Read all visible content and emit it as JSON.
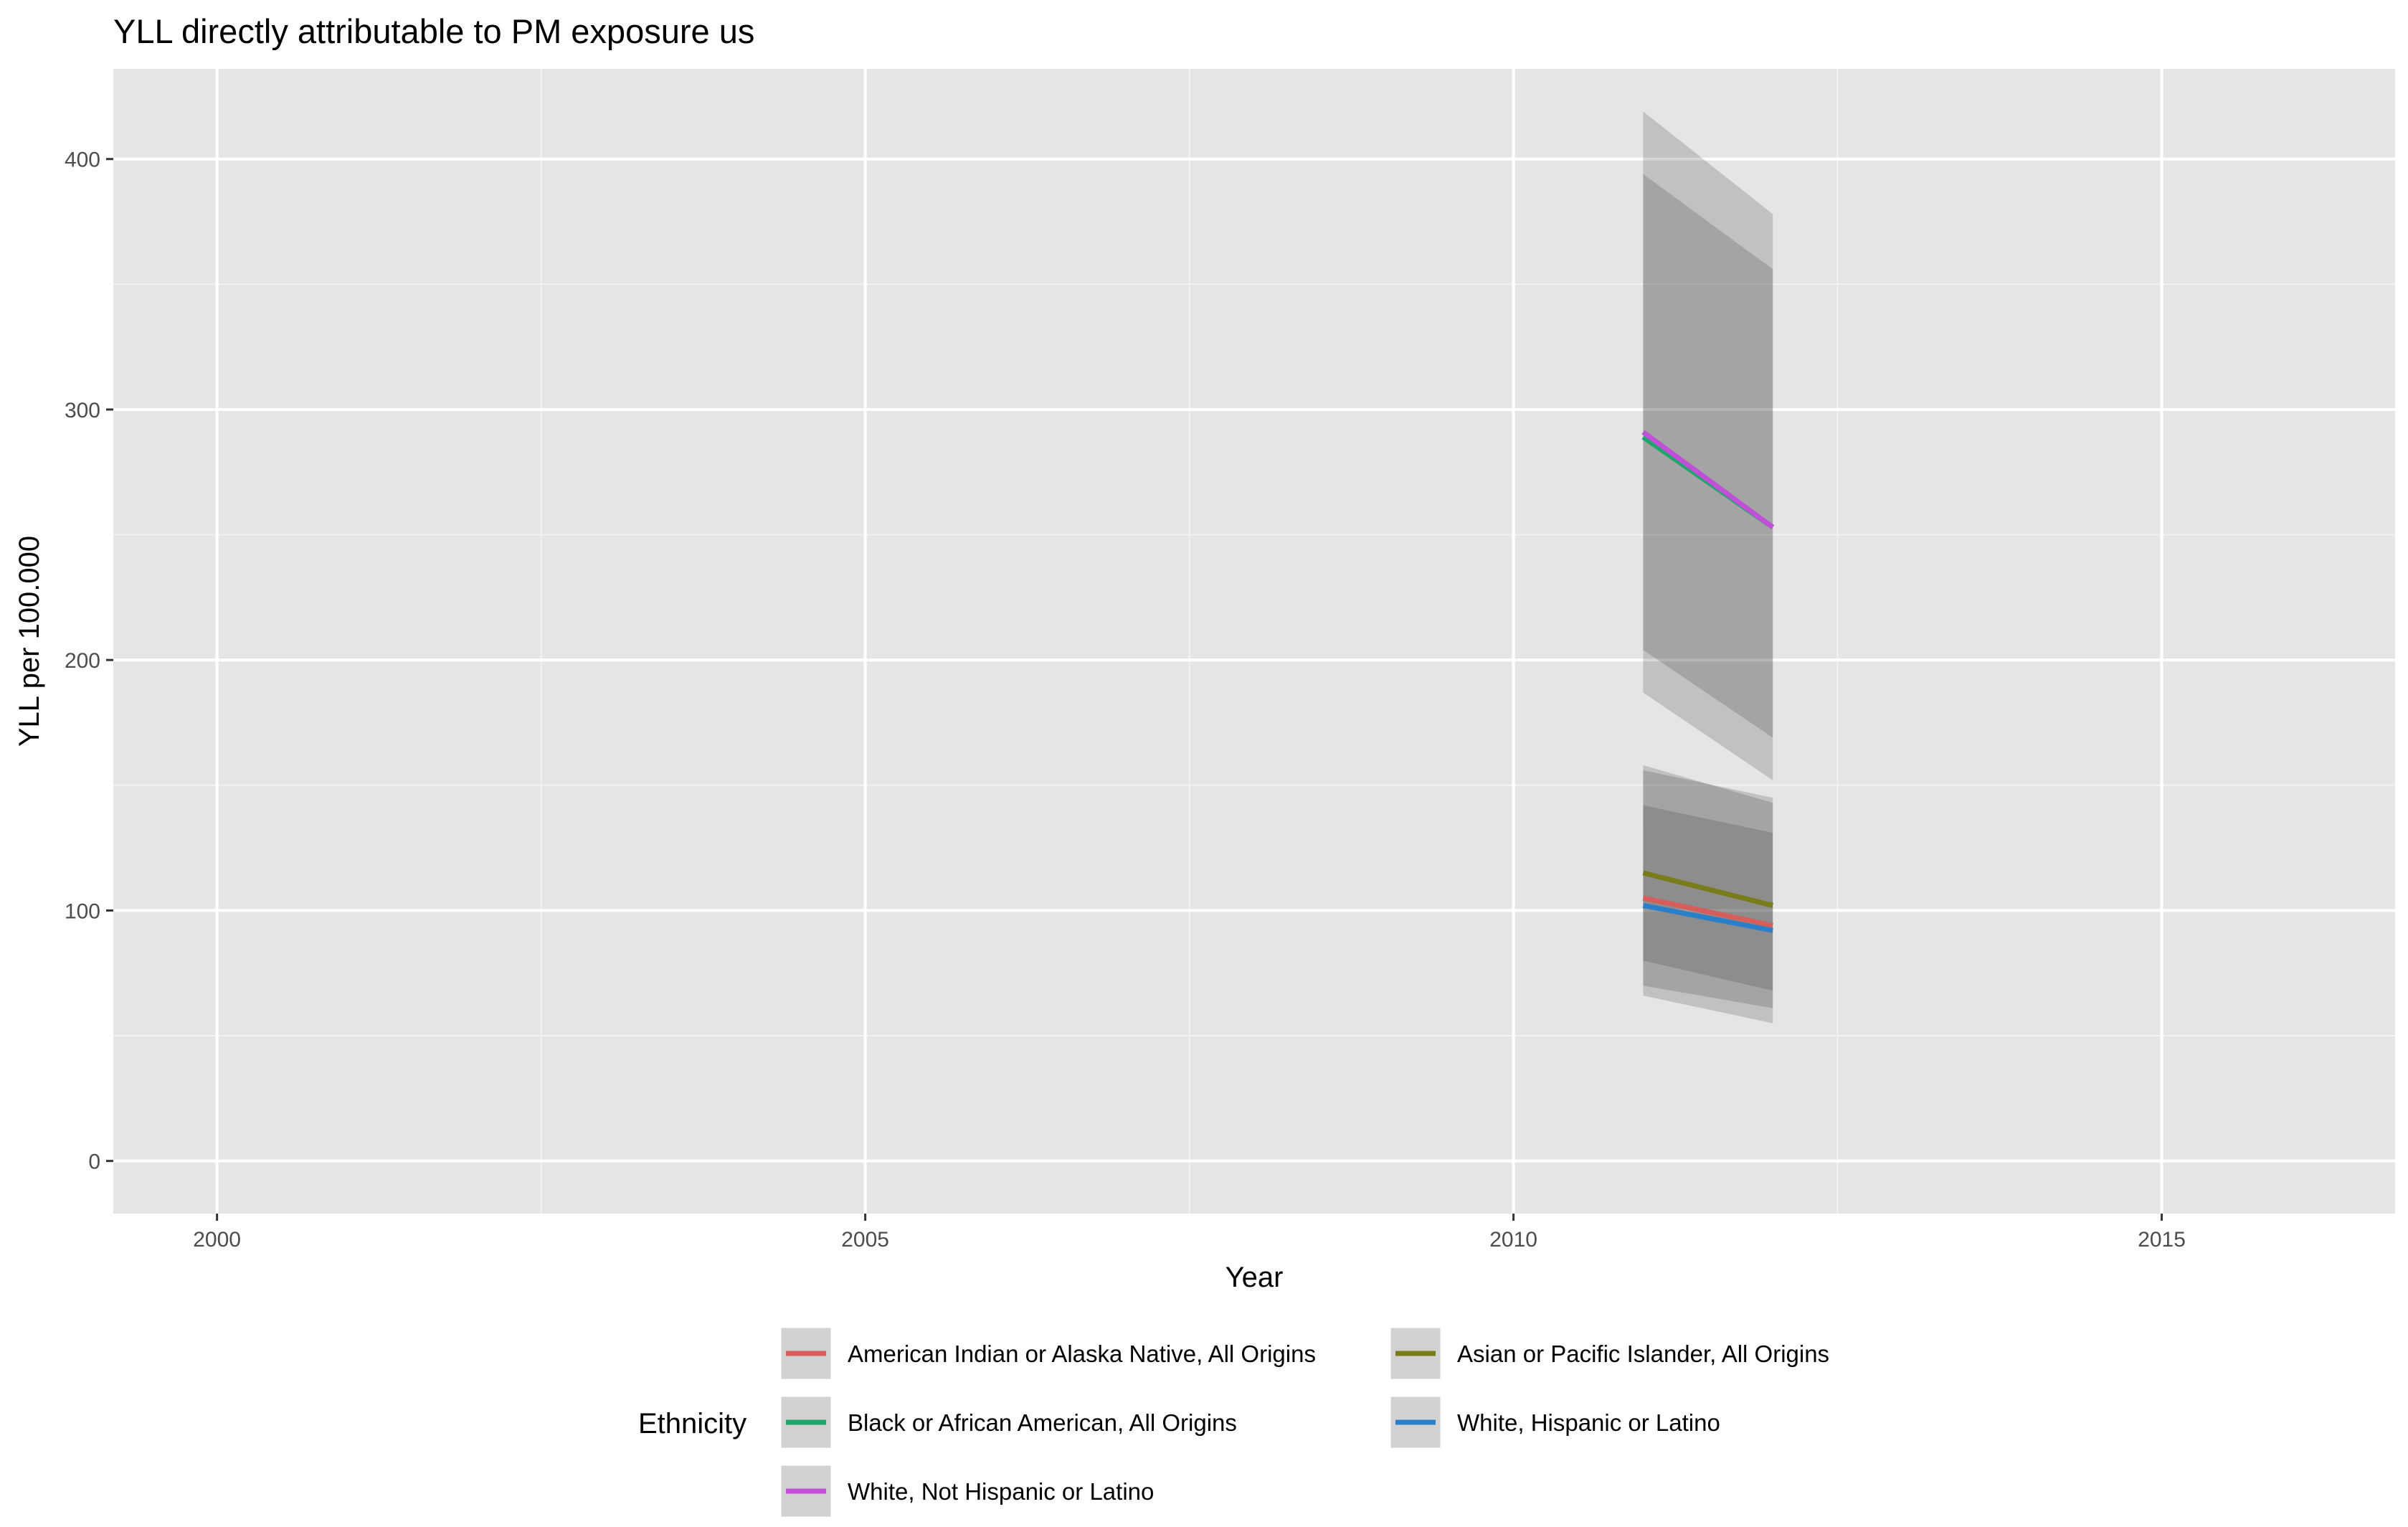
{
  "chart_data": {
    "type": "line",
    "title": "YLL directly attributable to PM exposure us",
    "xlabel": "Year",
    "ylabel": "YLL per 100.000",
    "xlim": [
      1999.2,
      2016.8
    ],
    "ylim": [
      -21,
      436
    ],
    "x_ticks": [
      2000,
      2005,
      2010,
      2015
    ],
    "x_tick_labels": [
      "2000",
      "2005",
      "2010",
      "2015"
    ],
    "y_ticks": [
      0,
      100,
      200,
      300,
      400
    ],
    "y_tick_labels": [
      "0",
      "100",
      "200",
      "300",
      "400"
    ],
    "grid": true,
    "legend_position": "bottom",
    "legend_title": "Ethnicity",
    "x": [
      2011,
      2012
    ],
    "series": [
      {
        "name": "American Indian or Alaska Native, All Origins",
        "color": "#d55e5a",
        "values": [
          105,
          94
        ],
        "lower": [
          70,
          61
        ],
        "upper": [
          142,
          131
        ]
      },
      {
        "name": "Asian or Pacific Islander, All Origins",
        "color": "#7a7b1a",
        "values": [
          115,
          102
        ],
        "lower": [
          80,
          68
        ],
        "upper": [
          158,
          143
        ]
      },
      {
        "name": "Black or African American, All Origins",
        "color": "#1fa56a",
        "values": [
          289,
          253
        ],
        "lower": [
          187,
          152
        ],
        "upper": [
          394,
          356
        ]
      },
      {
        "name": "White, Hispanic or Latino",
        "color": "#2b7fc9",
        "values": [
          102,
          92
        ],
        "lower": [
          66,
          55
        ],
        "upper": [
          156,
          145
        ]
      },
      {
        "name": "White, Not Hispanic or Latino",
        "color": "#c050d8",
        "values": [
          291,
          253
        ],
        "lower": [
          204,
          169
        ],
        "upper": [
          419,
          378
        ]
      }
    ],
    "legend_order": [
      0,
      1,
      2,
      3,
      4
    ]
  }
}
